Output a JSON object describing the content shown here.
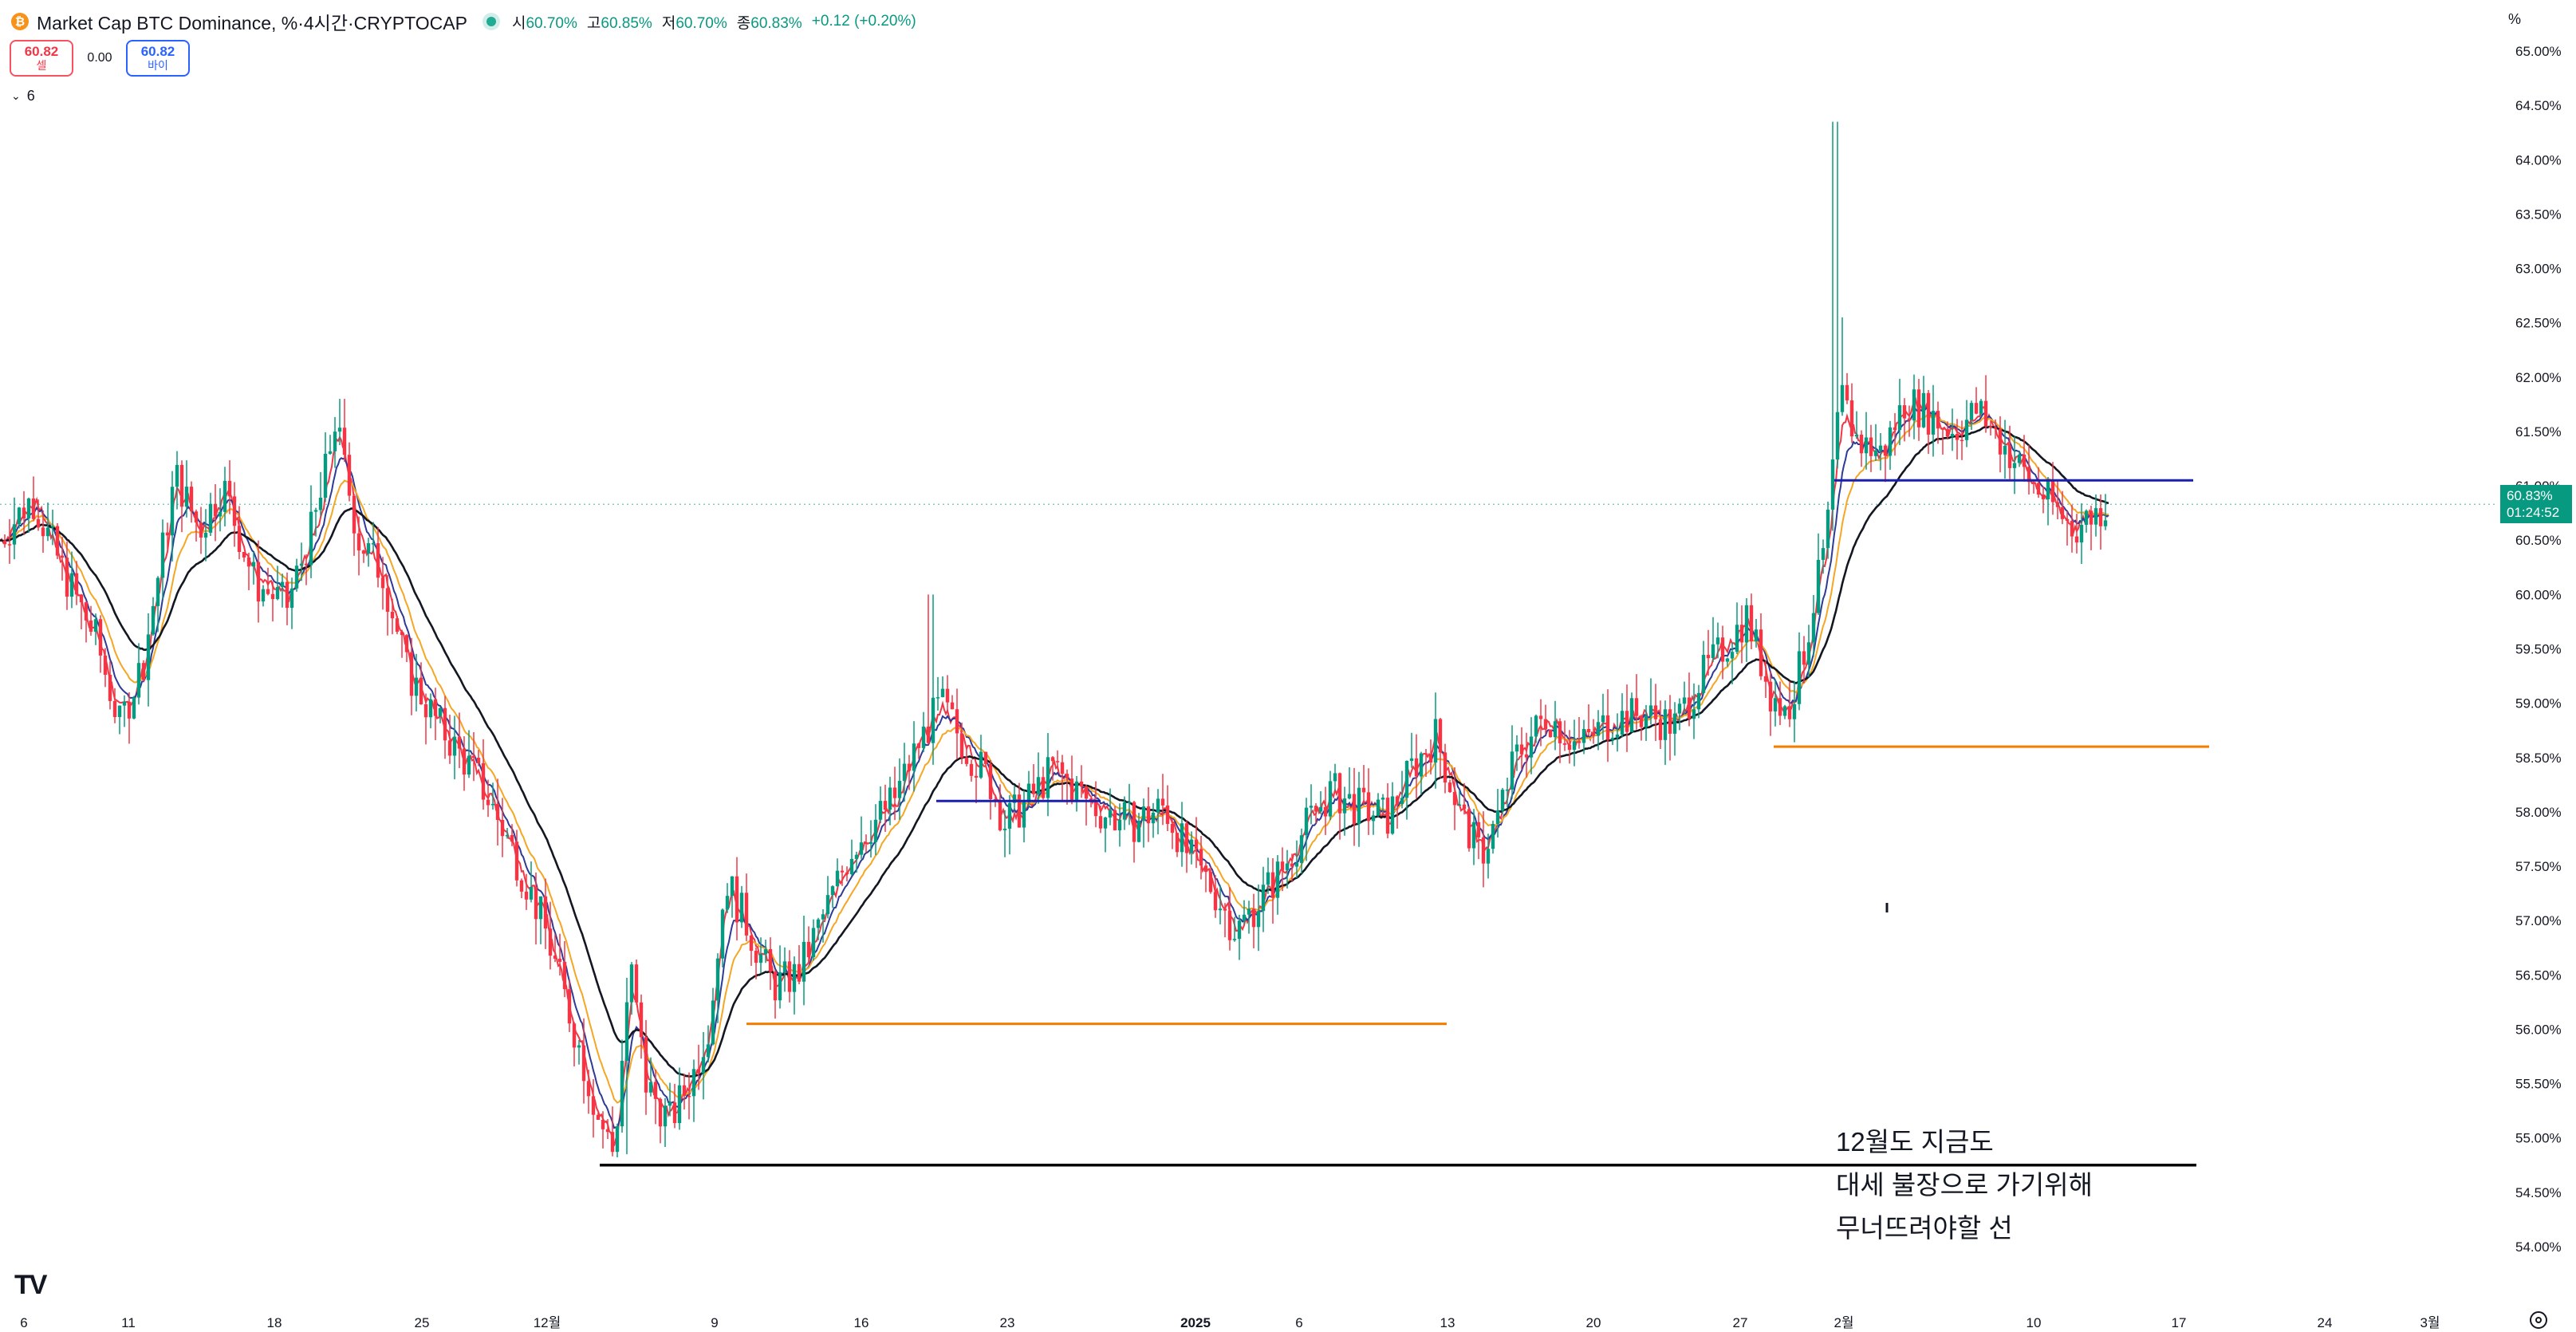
{
  "header": {
    "coin_icon": "bitcoin-icon",
    "title": "Market Cap BTC Dominance, %·4시간·CRYPTOCAP",
    "ohlc": [
      {
        "key": "시",
        "value": "60.70%"
      },
      {
        "key": "고",
        "value": "60.85%"
      },
      {
        "key": "저",
        "value": "60.70%"
      },
      {
        "key": "종",
        "value": "60.83%"
      }
    ],
    "change": "+0.12 (+0.20%)"
  },
  "trade": {
    "sell_price": "60.82",
    "sell_label": "셀",
    "spread": "0.00",
    "buy_price": "60.82",
    "buy_label": "바이"
  },
  "indicators": {
    "count": "6"
  },
  "price_axis": {
    "unit": "%"
  },
  "last_price": {
    "value": "60.83%",
    "countdown": "01:24:52"
  },
  "annotation_lines": [
    "12월도 지금도",
    "대세 불장으로 가기위해",
    "무너뜨려야할 선"
  ],
  "colors": {
    "up": "#089981",
    "down": "#f23645",
    "ema_fast": "#f23645",
    "ema_mid": "#2d3a96",
    "ema_slow": "#f5a623",
    "ema_long": "#131722",
    "level_blue": "#1a1fae",
    "level_orange": "#f57c00",
    "level_black": "#000000"
  },
  "chart_data": {
    "type": "candlestick",
    "title": "Market Cap BTC Dominance, %·4시간·CRYPTOCAP",
    "ylim": [
      53.85,
      65.25
    ],
    "y_ticks": [
      "65.00%",
      "64.50%",
      "64.00%",
      "63.50%",
      "63.00%",
      "62.50%",
      "62.00%",
      "61.50%",
      "61.00%",
      "60.50%",
      "60.00%",
      "59.50%",
      "59.00%",
      "58.50%",
      "58.00%",
      "57.50%",
      "57.00%",
      "56.50%",
      "56.00%",
      "55.50%",
      "55.00%",
      "54.50%",
      "54.00%"
    ],
    "x_ticks": [
      "6",
      "11",
      "18",
      "25",
      "12월",
      "9",
      "16",
      "23",
      "2025",
      "6",
      "13",
      "20",
      "27",
      "2월",
      "10",
      "17",
      "24",
      "3월"
    ],
    "x_tick_bold": [
      "2025"
    ],
    "close_path": [
      [
        0,
        60.5
      ],
      [
        20,
        60.9
      ],
      [
        40,
        60.2
      ],
      [
        60,
        59.6
      ],
      [
        75,
        58.8
      ],
      [
        90,
        59.4
      ],
      [
        110,
        61.1
      ],
      [
        125,
        60.6
      ],
      [
        140,
        61.0
      ],
      [
        160,
        60.1
      ],
      [
        180,
        59.9
      ],
      [
        200,
        60.8
      ],
      [
        210,
        61.6
      ],
      [
        225,
        60.5
      ],
      [
        240,
        60.2
      ],
      [
        255,
        59.3
      ],
      [
        275,
        58.8
      ],
      [
        300,
        58.3
      ],
      [
        320,
        57.7
      ],
      [
        340,
        57.0
      ],
      [
        360,
        56.0
      ],
      [
        375,
        55.2
      ],
      [
        385,
        54.85
      ],
      [
        395,
        56.6
      ],
      [
        405,
        55.5
      ],
      [
        420,
        55.15
      ],
      [
        435,
        55.6
      ],
      [
        445,
        56.1
      ],
      [
        455,
        57.4
      ],
      [
        470,
        56.9
      ],
      [
        485,
        56.4
      ],
      [
        500,
        56.5
      ],
      [
        515,
        57.0
      ],
      [
        535,
        57.7
      ],
      [
        560,
        58.1
      ],
      [
        575,
        58.6
      ],
      [
        590,
        59.0
      ],
      [
        605,
        58.6
      ],
      [
        620,
        58.3
      ],
      [
        630,
        57.9
      ],
      [
        645,
        58.1
      ],
      [
        660,
        58.4
      ],
      [
        675,
        58.2
      ],
      [
        690,
        58.0
      ],
      [
        710,
        57.9
      ],
      [
        730,
        58.05
      ],
      [
        745,
        57.6
      ],
      [
        760,
        57.3
      ],
      [
        775,
        56.9
      ],
      [
        790,
        57.2
      ],
      [
        805,
        57.5
      ],
      [
        820,
        57.9
      ],
      [
        835,
        58.2
      ],
      [
        850,
        58.05
      ],
      [
        870,
        57.95
      ],
      [
        885,
        58.4
      ],
      [
        900,
        58.7
      ],
      [
        915,
        58.0
      ],
      [
        928,
        57.6
      ],
      [
        938,
        57.9
      ],
      [
        950,
        58.5
      ],
      [
        970,
        58.9
      ],
      [
        990,
        58.6
      ],
      [
        1010,
        58.85
      ],
      [
        1030,
        58.9
      ],
      [
        1050,
        58.8
      ],
      [
        1065,
        59.2
      ],
      [
        1080,
        59.5
      ],
      [
        1095,
        59.8
      ],
      [
        1110,
        59.1
      ],
      [
        1120,
        58.9
      ],
      [
        1130,
        59.4
      ],
      [
        1145,
        60.5
      ],
      [
        1150,
        61.3
      ],
      [
        1155,
        61.8
      ],
      [
        1165,
        61.4
      ],
      [
        1180,
        61.3
      ],
      [
        1195,
        61.8
      ],
      [
        1210,
        61.65
      ],
      [
        1225,
        61.5
      ],
      [
        1240,
        61.7
      ],
      [
        1255,
        61.4
      ],
      [
        1270,
        61.1
      ],
      [
        1285,
        60.85
      ],
      [
        1300,
        60.6
      ],
      [
        1310,
        60.72
      ],
      [
        1322,
        60.83
      ]
    ],
    "spikes": [
      [
        1149,
        64.35
      ],
      [
        1154,
        62.55
      ],
      [
        582,
        60.0
      ],
      [
        213,
        61.8
      ],
      [
        392,
        54.85
      ]
    ],
    "ema_series": [
      {
        "length": 6,
        "color": "#f23645"
      },
      {
        "length": 14,
        "color": "#2d3a96"
      },
      {
        "length": 26,
        "color": "#f5a623"
      },
      {
        "length": 55,
        "color": "#131722"
      }
    ],
    "horizontal_levels": [
      {
        "price": 61.05,
        "x_from": 1150,
        "x_to": 1375,
        "color": "#1a1fae"
      },
      {
        "price": 58.1,
        "x_from": 587,
        "x_to": 690,
        "color": "#1a1fae"
      },
      {
        "price": 58.6,
        "x_from": 1112,
        "x_to": 1385,
        "color": "#f57c00"
      },
      {
        "price": 56.05,
        "x_from": 468,
        "x_to": 907,
        "color": "#f57c00"
      },
      {
        "price": 54.75,
        "x_from": 376,
        "x_to": 1377,
        "color": "#000000"
      }
    ],
    "last_close": 60.83
  }
}
